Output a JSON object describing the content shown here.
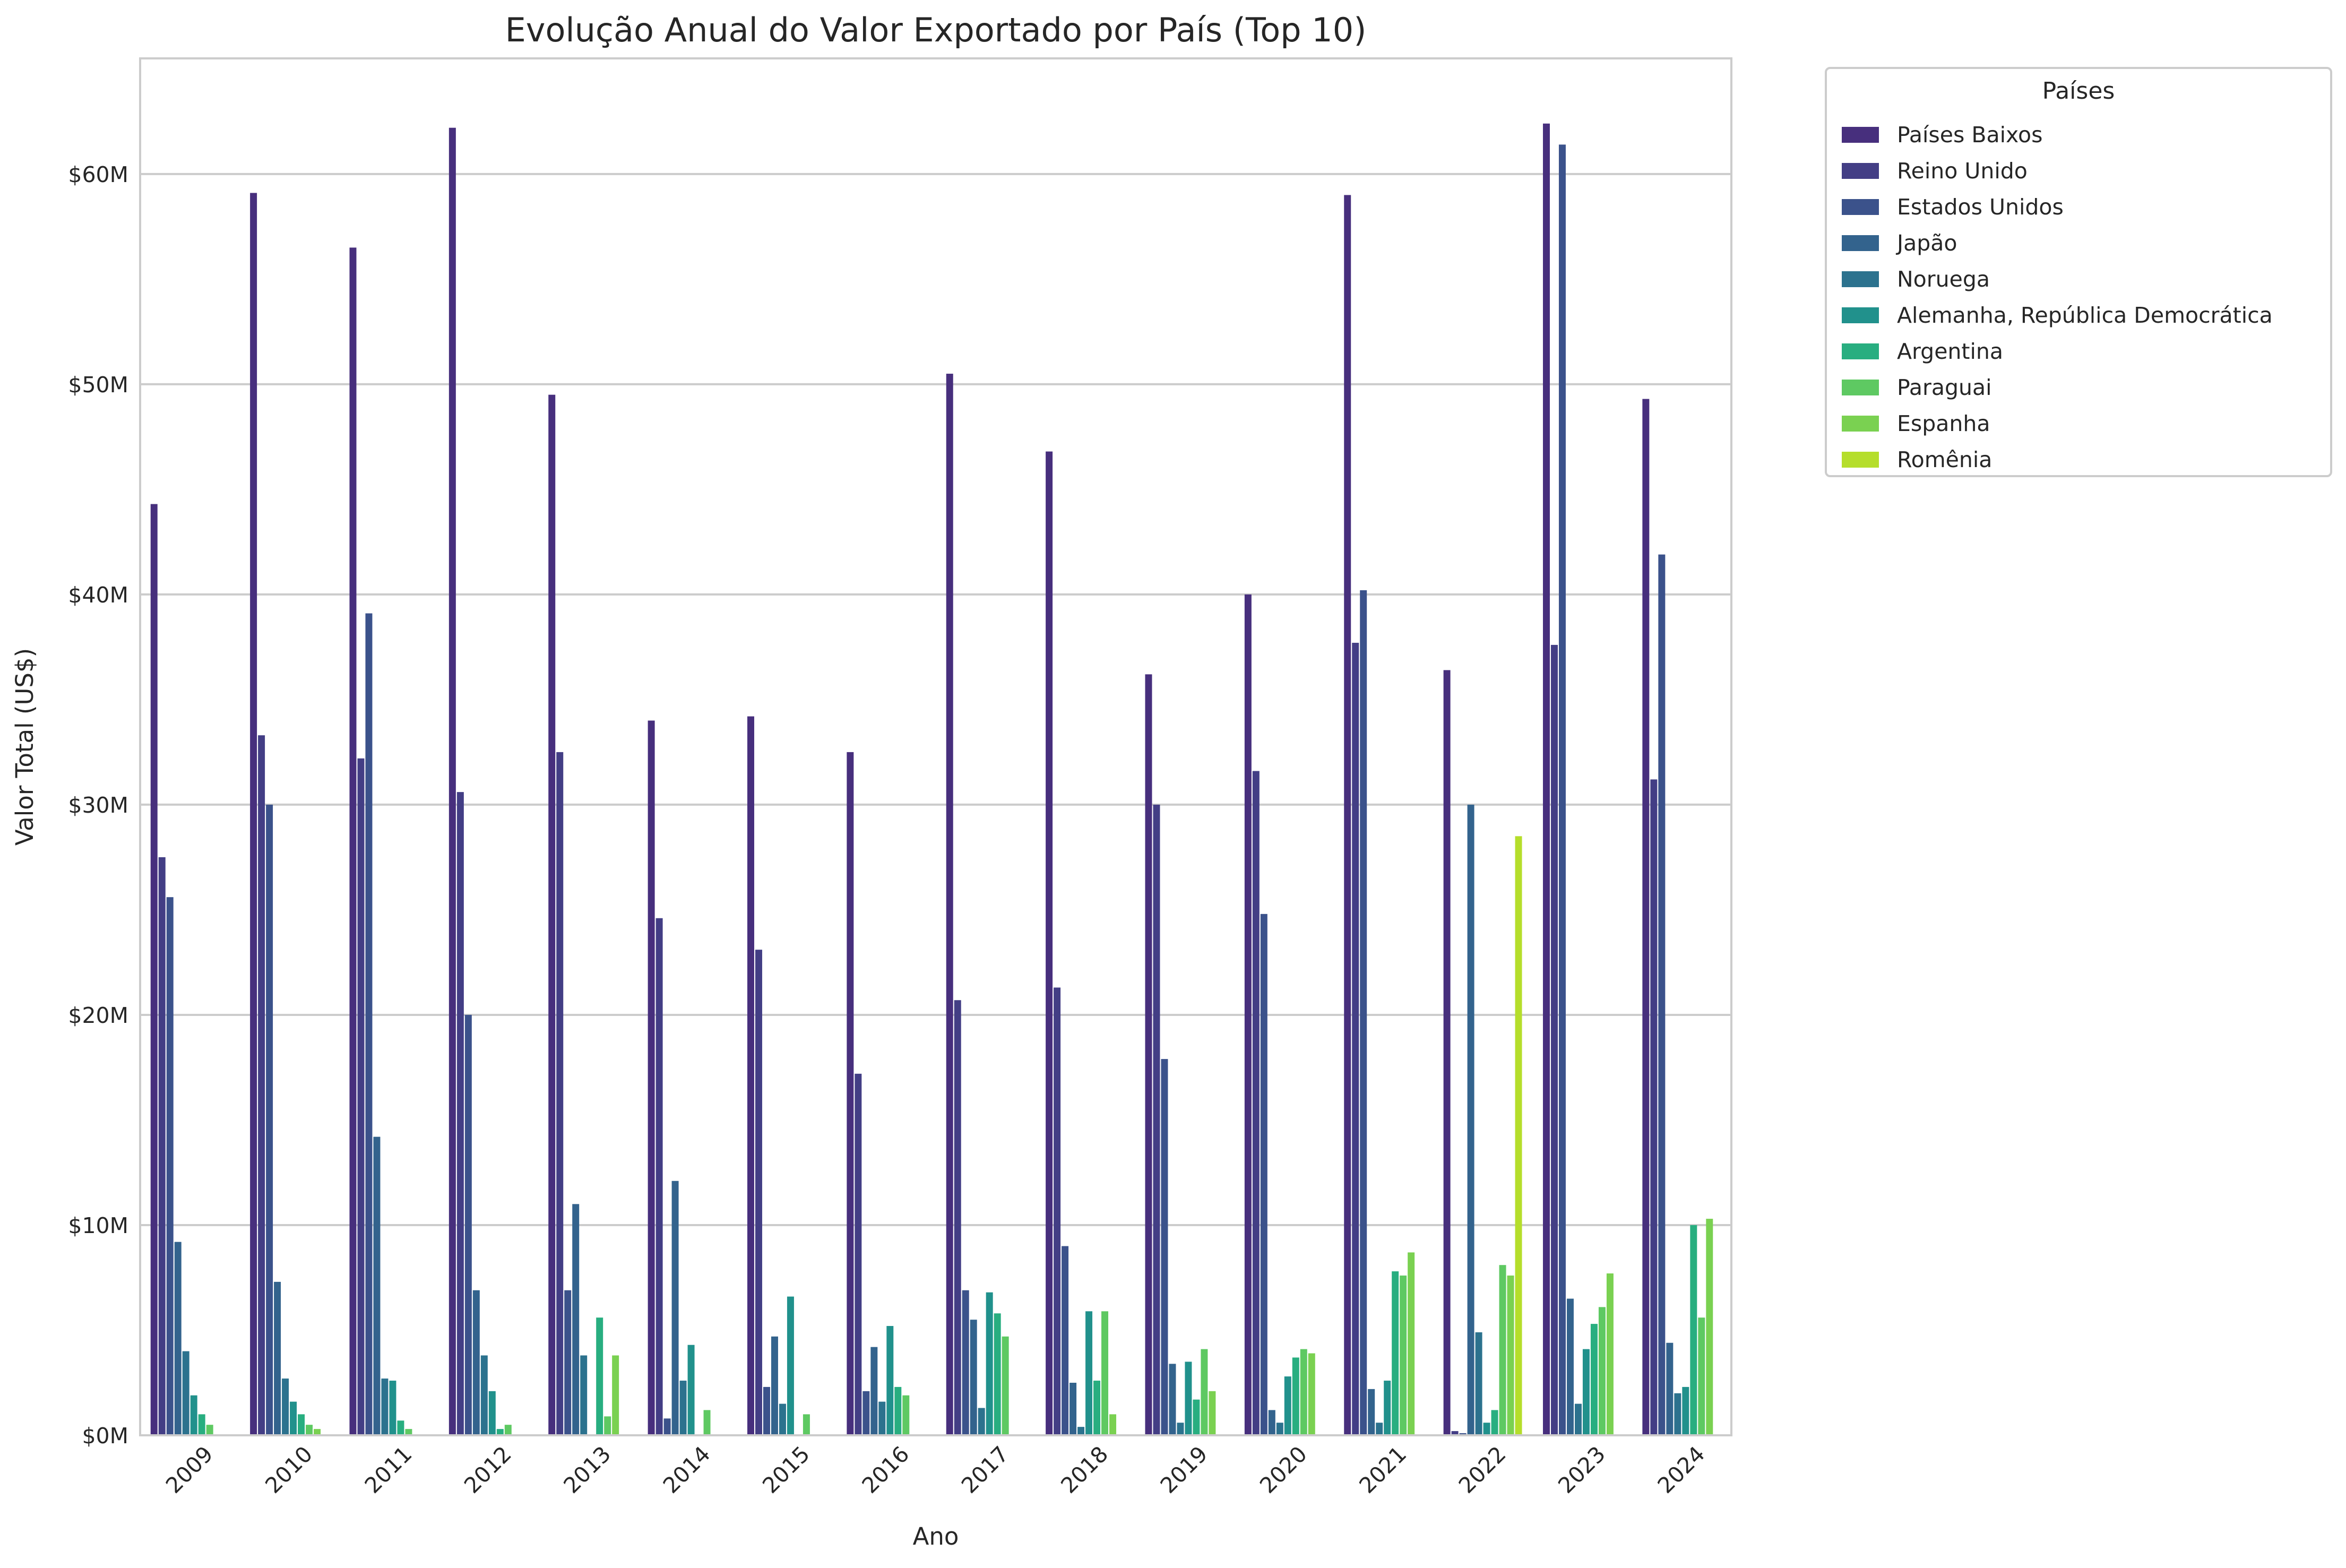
{
  "chart_data": {
    "type": "bar",
    "title": "Evolução Anual do Valor Exportado por País (Top 10)",
    "xlabel": "Ano",
    "ylabel": "Valor Total (US$)",
    "ylim": [
      0,
      65.5
    ],
    "y_ticks": [
      0,
      10,
      20,
      30,
      40,
      50,
      60
    ],
    "y_tick_labels": [
      "$0M",
      "$10M",
      "$20M",
      "$30M",
      "$40M",
      "$50M",
      "$60M"
    ],
    "y_unit": "US$ millions",
    "grid": "horizontal",
    "legend_placement": "outside top-right",
    "legend_title": "Países",
    "categories": [
      "2009",
      "2010",
      "2011",
      "2012",
      "2013",
      "2014",
      "2015",
      "2016",
      "2017",
      "2018",
      "2019",
      "2020",
      "2021",
      "2022",
      "2023",
      "2024"
    ],
    "series": [
      {
        "name": "Países Baixos",
        "color": "#472f7d",
        "values": [
          44.3,
          59.1,
          56.5,
          62.2,
          49.5,
          34.0,
          34.2,
          32.5,
          50.5,
          46.8,
          36.2,
          40.0,
          59.0,
          36.4,
          62.4,
          49.3
        ]
      },
      {
        "name": "Reino Unido",
        "color": "#433e85",
        "values": [
          27.5,
          33.3,
          32.2,
          30.6,
          32.5,
          24.6,
          23.1,
          17.2,
          20.7,
          21.3,
          30.0,
          31.6,
          37.7,
          0.2,
          37.6,
          31.2
        ]
      },
      {
        "name": "Estados Unidos",
        "color": "#3b528b",
        "values": [
          25.6,
          30.0,
          39.1,
          20.0,
          6.9,
          0.8,
          2.3,
          2.1,
          6.9,
          9.0,
          17.9,
          24.8,
          40.2,
          0.1,
          61.4,
          41.9
        ]
      },
      {
        "name": "Japão",
        "color": "#33638d",
        "values": [
          9.2,
          7.3,
          14.2,
          6.9,
          11.0,
          12.1,
          4.7,
          4.2,
          5.5,
          2.5,
          3.4,
          1.2,
          2.2,
          30.0,
          6.5,
          4.4
        ]
      },
      {
        "name": "Noruega",
        "color": "#2c728e",
        "values": [
          4.0,
          2.7,
          2.7,
          3.8,
          3.8,
          2.6,
          1.5,
          1.6,
          1.3,
          0.4,
          0.6,
          0.6,
          0.6,
          4.9,
          1.5,
          2.0
        ]
      },
      {
        "name": "Alemanha, República Democrática",
        "color": "#21918c",
        "values": [
          1.9,
          1.6,
          2.6,
          2.1,
          0.0,
          4.3,
          6.6,
          5.2,
          6.8,
          5.9,
          3.5,
          2.8,
          2.6,
          0.6,
          4.1,
          2.3
        ]
      },
      {
        "name": "Argentina",
        "color": "#28ae80",
        "values": [
          1.0,
          1.0,
          0.7,
          0.3,
          5.6,
          0.0,
          0.0,
          2.3,
          5.8,
          2.6,
          1.7,
          3.7,
          7.8,
          1.2,
          5.3,
          10.0
        ]
      },
      {
        "name": "Paraguai",
        "color": "#5ec962",
        "values": [
          0.5,
          0.5,
          0.3,
          0.5,
          0.9,
          1.2,
          1.0,
          1.9,
          4.7,
          5.9,
          4.1,
          4.1,
          7.6,
          8.1,
          6.1,
          5.6
        ]
      },
      {
        "name": "Espanha",
        "color": "#7ad151",
        "values": [
          0.0,
          0.3,
          0.0,
          0.0,
          3.8,
          0.0,
          0.0,
          0.0,
          0.0,
          1.0,
          2.1,
          3.9,
          8.7,
          7.6,
          7.7,
          10.3
        ]
      },
      {
        "name": "Romênia",
        "color": "#b5de2b",
        "values": [
          0.0,
          0.0,
          0.0,
          0.0,
          0.0,
          0.0,
          0.0,
          0.0,
          0.0,
          0.0,
          0.0,
          0.0,
          0.0,
          28.5,
          0.0,
          0.0
        ]
      }
    ]
  }
}
